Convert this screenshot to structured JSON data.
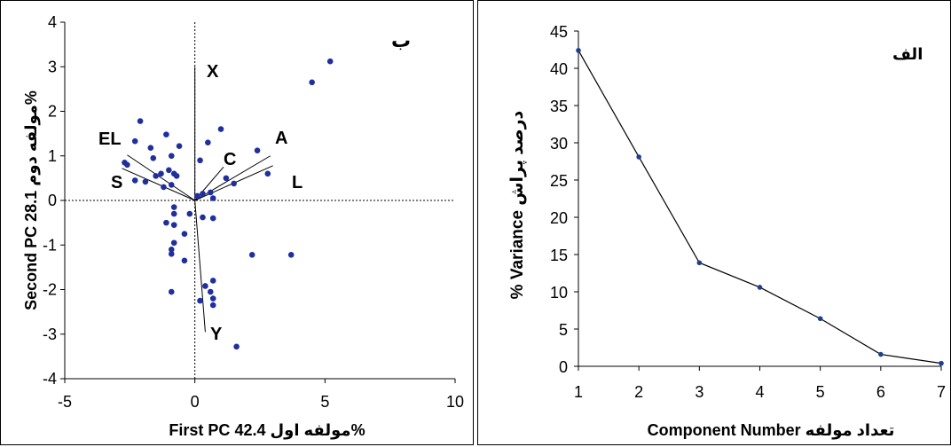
{
  "chart_data": [
    {
      "type": "scatter",
      "panel_label": "ب",
      "xlabel_en": "First PC",
      "xlabel_fa": "مولفه اول",
      "xlabel_pct": "42.4%",
      "ylabel_en": "Second PC",
      "ylabel_fa": "مولفه دوم",
      "ylabel_pct": "28.1%",
      "xlim": [
        -5,
        10
      ],
      "ylim": [
        -4,
        4
      ],
      "x_ticks": [
        "-5",
        "0",
        "5",
        "10"
      ],
      "y_ticks": [
        "-4",
        "-3",
        "-2",
        "-1",
        "0",
        "1",
        "2",
        "3",
        "4"
      ],
      "zero_lines": "dashed",
      "points": [
        [
          5.2,
          3.12
        ],
        [
          4.5,
          2.65
        ],
        [
          -2.1,
          1.78
        ],
        [
          -2.3,
          1.33
        ],
        [
          -1.7,
          1.18
        ],
        [
          -1.6,
          0.95
        ],
        [
          -1.1,
          1.48
        ],
        [
          -0.6,
          1.22
        ],
        [
          -0.9,
          1.0
        ],
        [
          -2.7,
          0.85
        ],
        [
          -2.6,
          0.8
        ],
        [
          -1.3,
          0.6
        ],
        [
          -1.0,
          0.68
        ],
        [
          -0.8,
          0.6
        ],
        [
          -0.7,
          0.55
        ],
        [
          -2.3,
          0.45
        ],
        [
          -1.9,
          0.42
        ],
        [
          -1.5,
          0.55
        ],
        [
          -1.2,
          0.3
        ],
        [
          -0.9,
          0.35
        ],
        [
          1.0,
          1.6
        ],
        [
          0.5,
          1.3
        ],
        [
          2.4,
          1.12
        ],
        [
          0.2,
          0.9
        ],
        [
          1.2,
          0.5
        ],
        [
          1.5,
          0.38
        ],
        [
          2.8,
          0.6
        ],
        [
          0.3,
          0.15
        ],
        [
          0.6,
          0.18
        ],
        [
          0.1,
          0.1
        ],
        [
          0.7,
          0.05
        ],
        [
          -0.8,
          -0.15
        ],
        [
          -0.8,
          -0.3
        ],
        [
          -0.2,
          -0.3
        ],
        [
          -0.8,
          -0.55
        ],
        [
          0.3,
          -0.38
        ],
        [
          0.7,
          -0.4
        ],
        [
          -1.1,
          -0.5
        ],
        [
          -0.4,
          -0.75
        ],
        [
          -0.8,
          -0.95
        ],
        [
          -0.9,
          -1.1
        ],
        [
          -0.9,
          -1.2
        ],
        [
          -0.4,
          -1.35
        ],
        [
          2.2,
          -1.22
        ],
        [
          3.7,
          -1.22
        ],
        [
          0.7,
          -1.8
        ],
        [
          0.4,
          -1.92
        ],
        [
          0.6,
          -2.05
        ],
        [
          0.7,
          -2.2
        ],
        [
          0.7,
          -2.35
        ],
        [
          -0.9,
          -2.05
        ],
        [
          0.2,
          -2.25
        ],
        [
          1.6,
          -3.28
        ]
      ],
      "loadings": [
        {
          "label": "X",
          "x": 0.0,
          "y": 3.0
        },
        {
          "label": "A",
          "x": 2.9,
          "y": 1.0
        },
        {
          "label": "C",
          "x": 1.1,
          "y": 0.75
        },
        {
          "label": "L",
          "x": 3.0,
          "y": 0.78
        },
        {
          "label": "EL",
          "x": -2.6,
          "y": 1.02
        },
        {
          "label": "S",
          "x": -2.8,
          "y": 0.72
        },
        {
          "label": "Y",
          "x": 0.4,
          "y": -2.95
        }
      ]
    },
    {
      "type": "line",
      "panel_label": "الف",
      "xlabel_en": "Component Number",
      "xlabel_fa": "تعداد مولفه",
      "ylabel_en": "% Variance",
      "ylabel_fa": "درصد پراش",
      "x": [
        1,
        2,
        3,
        4,
        5,
        6,
        7
      ],
      "values": [
        42.4,
        28.1,
        13.9,
        10.6,
        6.4,
        1.6,
        0.4
      ],
      "xlim": [
        1,
        7
      ],
      "ylim": [
        0,
        45
      ],
      "x_ticks": [
        "1",
        "2",
        "3",
        "4",
        "5",
        "6",
        "7"
      ],
      "y_ticks": [
        "0",
        "5",
        "10",
        "15",
        "20",
        "25",
        "30",
        "35",
        "40",
        "45"
      ]
    }
  ]
}
